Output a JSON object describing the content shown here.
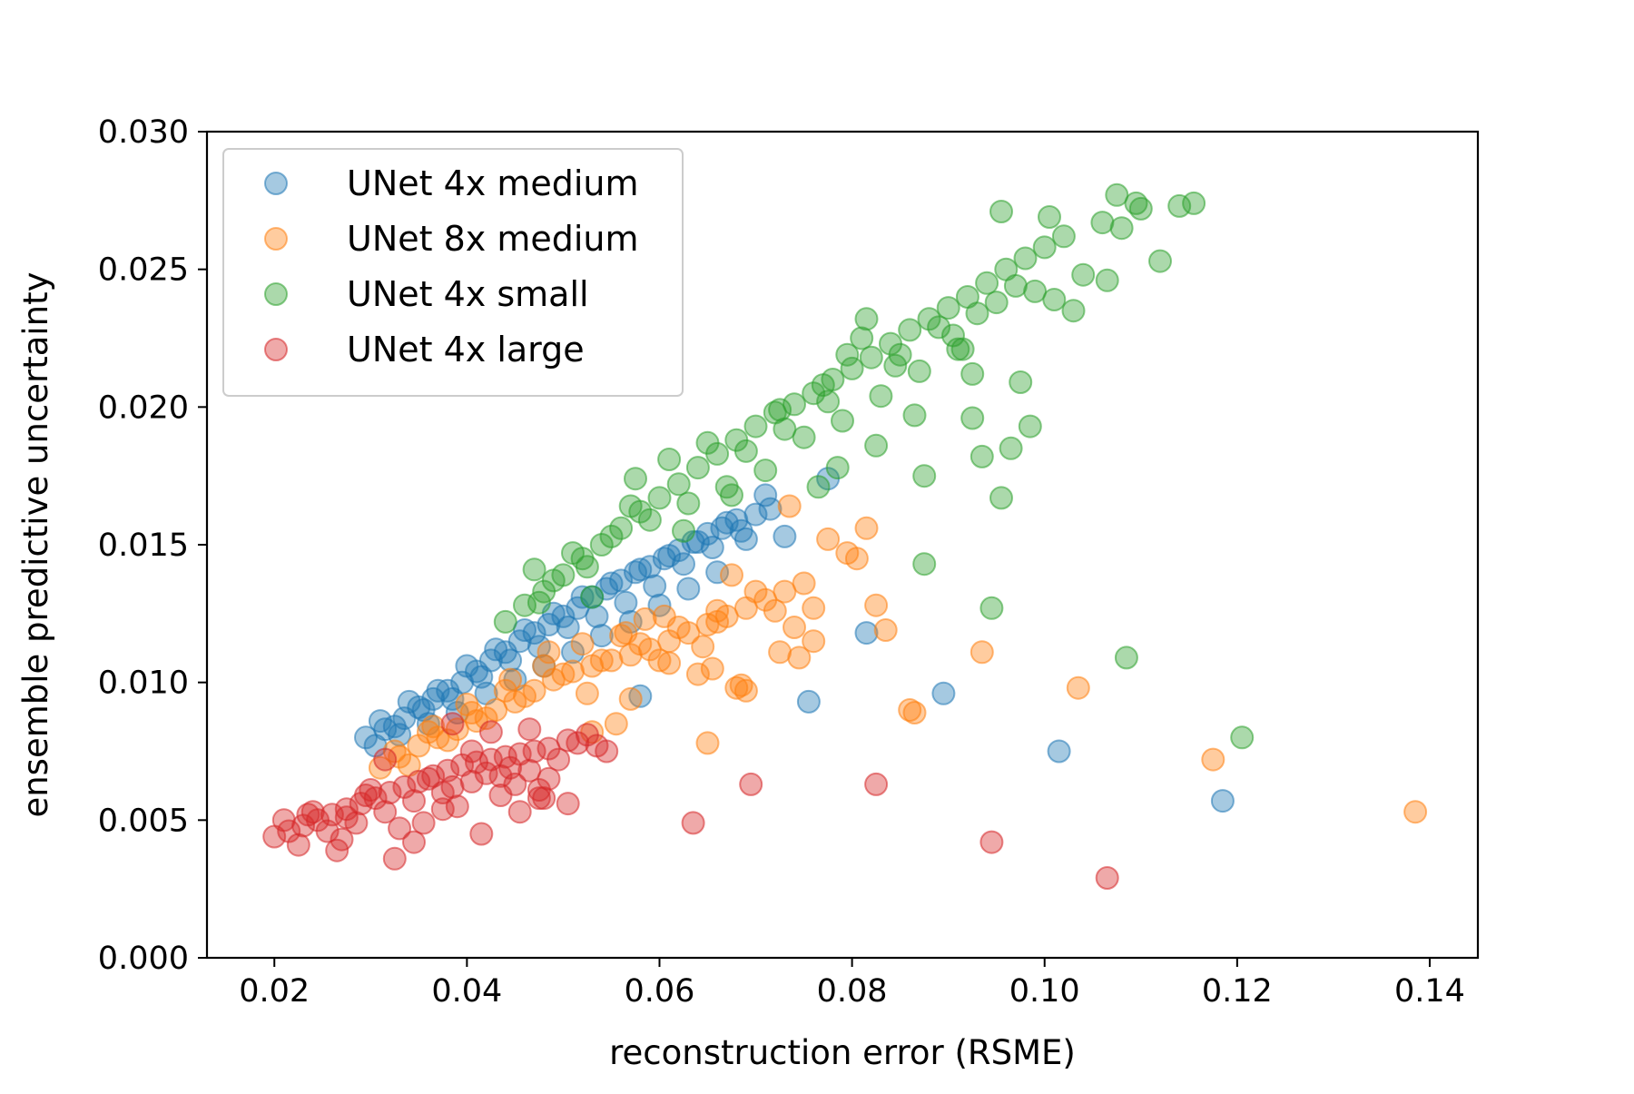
{
  "chart_data": {
    "type": "scatter",
    "title": "",
    "xlabel": "reconstruction error (RSME)",
    "ylabel": "ensemble predictive uncertainty",
    "xlim": [
      0.013,
      0.145
    ],
    "ylim": [
      0.0,
      0.03
    ],
    "xticks": [
      0.02,
      0.04,
      0.06,
      0.08,
      0.1,
      0.12,
      0.14
    ],
    "xtick_labels": [
      "0.02",
      "0.04",
      "0.06",
      "0.08",
      "0.10",
      "0.12",
      "0.14"
    ],
    "yticks": [
      0.0,
      0.005,
      0.01,
      0.015,
      0.02,
      0.025,
      0.03
    ],
    "ytick_labels": [
      "0.000",
      "0.005",
      "0.010",
      "0.015",
      "0.020",
      "0.025",
      "0.030"
    ],
    "grid": false,
    "legend_position": "top-left",
    "marker_alpha": 0.4,
    "series": [
      {
        "name": "UNet 4x medium",
        "color": "#1f77b4",
        "x": [
          0.0295,
          0.0315,
          0.0335,
          0.035,
          0.0365,
          0.038,
          0.0395,
          0.041,
          0.0425,
          0.044,
          0.0455,
          0.047,
          0.0485,
          0.05,
          0.0515,
          0.053,
          0.0545,
          0.056,
          0.0575,
          0.059,
          0.0605,
          0.062,
          0.0635,
          0.065,
          0.0665,
          0.068,
          0.0305,
          0.033,
          0.036,
          0.039,
          0.042,
          0.045,
          0.048,
          0.051,
          0.054,
          0.057,
          0.06,
          0.063,
          0.066,
          0.031,
          0.034,
          0.037,
          0.04,
          0.043,
          0.046,
          0.049,
          0.052,
          0.055,
          0.058,
          0.061,
          0.064,
          0.067,
          0.0325,
          0.0355,
          0.0385,
          0.0415,
          0.0445,
          0.0475,
          0.0505,
          0.0535,
          0.0565,
          0.0595,
          0.0625,
          0.0655,
          0.0685,
          0.07,
          0.0715,
          0.073,
          0.0775,
          0.0815,
          0.0755,
          0.0895,
          0.1015,
          0.1185,
          0.058,
          0.069,
          0.071
        ],
        "y": [
          0.008,
          0.0083,
          0.0087,
          0.0091,
          0.0094,
          0.0097,
          0.01,
          0.0104,
          0.0108,
          0.0111,
          0.0115,
          0.0118,
          0.0121,
          0.0124,
          0.0127,
          0.0131,
          0.0134,
          0.0137,
          0.014,
          0.0142,
          0.0145,
          0.0148,
          0.0151,
          0.0154,
          0.0156,
          0.0159,
          0.0077,
          0.0081,
          0.0085,
          0.0089,
          0.0096,
          0.0101,
          0.0106,
          0.0111,
          0.0117,
          0.0122,
          0.0128,
          0.0134,
          0.014,
          0.0086,
          0.0093,
          0.0097,
          0.0106,
          0.0112,
          0.0119,
          0.0125,
          0.0131,
          0.0136,
          0.0141,
          0.0146,
          0.0151,
          0.0158,
          0.0084,
          0.009,
          0.0094,
          0.0102,
          0.0108,
          0.0113,
          0.012,
          0.0124,
          0.0129,
          0.0135,
          0.0143,
          0.0149,
          0.0155,
          0.0161,
          0.0163,
          0.0153,
          0.0174,
          0.0118,
          0.0093,
          0.0096,
          0.0075,
          0.0057,
          0.0095,
          0.0152,
          0.0168
        ]
      },
      {
        "name": "UNet 8x medium",
        "color": "#ff7f0e",
        "x": [
          0.031,
          0.033,
          0.035,
          0.037,
          0.039,
          0.041,
          0.043,
          0.045,
          0.047,
          0.049,
          0.051,
          0.053,
          0.055,
          0.057,
          0.059,
          0.061,
          0.063,
          0.065,
          0.067,
          0.069,
          0.071,
          0.073,
          0.075,
          0.034,
          0.038,
          0.042,
          0.046,
          0.05,
          0.054,
          0.058,
          0.062,
          0.066,
          0.07,
          0.074,
          0.036,
          0.04,
          0.044,
          0.048,
          0.052,
          0.056,
          0.06,
          0.064,
          0.068,
          0.072,
          0.076,
          0.0325,
          0.0365,
          0.0405,
          0.0445,
          0.0485,
          0.0525,
          0.0565,
          0.0605,
          0.0645,
          0.0685,
          0.0725,
          0.053,
          0.057,
          0.061,
          0.066,
          0.0735,
          0.0775,
          0.0795,
          0.0805,
          0.0815,
          0.0825,
          0.0835,
          0.0745,
          0.076,
          0.069,
          0.065,
          0.0675,
          0.0585,
          0.0555,
          0.0655,
          0.086,
          0.0935,
          0.1035,
          0.1175,
          0.1385,
          0.0865
        ],
        "y": [
          0.0069,
          0.0073,
          0.0077,
          0.008,
          0.0083,
          0.0086,
          0.009,
          0.0093,
          0.0097,
          0.0101,
          0.0104,
          0.0106,
          0.0108,
          0.011,
          0.0112,
          0.0115,
          0.0118,
          0.0121,
          0.0124,
          0.0127,
          0.013,
          0.0133,
          0.0136,
          0.007,
          0.0079,
          0.0087,
          0.0095,
          0.0103,
          0.0108,
          0.0114,
          0.012,
          0.0126,
          0.0133,
          0.012,
          0.0082,
          0.0092,
          0.0097,
          0.0106,
          0.0114,
          0.0117,
          0.0108,
          0.0103,
          0.0098,
          0.0126,
          0.0115,
          0.0075,
          0.0084,
          0.0089,
          0.0101,
          0.0111,
          0.0096,
          0.0118,
          0.0124,
          0.0113,
          0.0099,
          0.0111,
          0.0082,
          0.0094,
          0.0107,
          0.0122,
          0.0164,
          0.0152,
          0.0147,
          0.0145,
          0.0156,
          0.0128,
          0.0119,
          0.0109,
          0.0127,
          0.0097,
          0.0078,
          0.0139,
          0.0123,
          0.0085,
          0.0105,
          0.009,
          0.0111,
          0.0098,
          0.0072,
          0.0053,
          0.0089
        ]
      },
      {
        "name": "UNet 4x small",
        "color": "#2ca02c",
        "x": [
          0.044,
          0.046,
          0.048,
          0.05,
          0.052,
          0.054,
          0.056,
          0.058,
          0.06,
          0.062,
          0.064,
          0.066,
          0.068,
          0.07,
          0.072,
          0.074,
          0.076,
          0.078,
          0.08,
          0.082,
          0.084,
          0.086,
          0.088,
          0.09,
          0.092,
          0.094,
          0.096,
          0.098,
          0.1,
          0.102,
          0.104,
          0.106,
          0.108,
          0.11,
          0.112,
          0.114,
          0.047,
          0.051,
          0.055,
          0.059,
          0.063,
          0.067,
          0.071,
          0.075,
          0.079,
          0.083,
          0.087,
          0.091,
          0.095,
          0.099,
          0.103,
          0.049,
          0.053,
          0.057,
          0.061,
          0.065,
          0.069,
          0.073,
          0.077,
          0.081,
          0.085,
          0.089,
          0.093,
          0.097,
          0.101,
          0.0475,
          0.0525,
          0.0575,
          0.0625,
          0.0675,
          0.0725,
          0.0775,
          0.0825,
          0.0875,
          0.0925,
          0.0975,
          0.1075,
          0.1095,
          0.1155,
          0.1065,
          0.0955,
          0.1005,
          0.0955,
          0.0935,
          0.0875,
          0.0965,
          0.0945,
          0.1085,
          0.1205,
          0.0865,
          0.0905,
          0.0915,
          0.0795,
          0.0815,
          0.0845,
          0.0925,
          0.0985,
          0.0765,
          0.0785
        ],
        "y": [
          0.0122,
          0.0128,
          0.0133,
          0.0139,
          0.0145,
          0.015,
          0.0156,
          0.0162,
          0.0167,
          0.0172,
          0.0178,
          0.0183,
          0.0188,
          0.0193,
          0.0198,
          0.0201,
          0.0205,
          0.021,
          0.0214,
          0.0218,
          0.0223,
          0.0228,
          0.0232,
          0.0236,
          0.024,
          0.0245,
          0.025,
          0.0254,
          0.0258,
          0.0262,
          0.0248,
          0.0267,
          0.0265,
          0.0272,
          0.0253,
          0.0273,
          0.0141,
          0.0147,
          0.0153,
          0.0159,
          0.0165,
          0.0171,
          0.0177,
          0.0189,
          0.0195,
          0.0204,
          0.0213,
          0.0221,
          0.0238,
          0.0242,
          0.0235,
          0.0137,
          0.0131,
          0.0164,
          0.0181,
          0.0187,
          0.0184,
          0.0192,
          0.0208,
          0.0225,
          0.0219,
          0.0229,
          0.0234,
          0.0244,
          0.0239,
          0.0129,
          0.0142,
          0.0174,
          0.0155,
          0.0168,
          0.0199,
          0.0202,
          0.0186,
          0.0175,
          0.0196,
          0.0209,
          0.0277,
          0.0274,
          0.0274,
          0.0246,
          0.0271,
          0.0269,
          0.0167,
          0.0182,
          0.0143,
          0.0185,
          0.0127,
          0.0109,
          0.008,
          0.0197,
          0.0226,
          0.0221,
          0.0219,
          0.0232,
          0.0215,
          0.0212,
          0.0193,
          0.0171,
          0.0178
        ]
      },
      {
        "name": "UNet 4x large",
        "color": "#d62728",
        "x": [
          0.02,
          0.0215,
          0.023,
          0.0245,
          0.026,
          0.0275,
          0.029,
          0.0305,
          0.032,
          0.0335,
          0.035,
          0.0365,
          0.038,
          0.0395,
          0.041,
          0.0425,
          0.044,
          0.0455,
          0.047,
          0.0485,
          0.0225,
          0.0255,
          0.0285,
          0.0315,
          0.0345,
          0.0375,
          0.0405,
          0.0435,
          0.0465,
          0.0495,
          0.021,
          0.024,
          0.027,
          0.03,
          0.033,
          0.036,
          0.039,
          0.042,
          0.045,
          0.048,
          0.0235,
          0.0265,
          0.0295,
          0.0325,
          0.0355,
          0.0385,
          0.0415,
          0.0445,
          0.0475,
          0.0505,
          0.0315,
          0.0345,
          0.0375,
          0.0405,
          0.0435,
          0.0465,
          0.0485,
          0.0505,
          0.0525,
          0.0535,
          0.0455,
          0.0475,
          0.0515,
          0.0545,
          0.0635,
          0.0695,
          0.0825,
          0.0945,
          0.1065,
          0.0385,
          0.0425,
          0.0275
        ],
        "y": [
          0.0044,
          0.0046,
          0.0048,
          0.005,
          0.0052,
          0.0054,
          0.0056,
          0.0058,
          0.006,
          0.0062,
          0.0064,
          0.0066,
          0.0068,
          0.007,
          0.0071,
          0.0072,
          0.0073,
          0.0074,
          0.0075,
          0.0076,
          0.0041,
          0.0046,
          0.0049,
          0.0053,
          0.0057,
          0.006,
          0.0064,
          0.0066,
          0.0068,
          0.0072,
          0.005,
          0.0053,
          0.0043,
          0.0061,
          0.0047,
          0.0065,
          0.0055,
          0.0067,
          0.0063,
          0.0058,
          0.0052,
          0.0039,
          0.0059,
          0.0036,
          0.0049,
          0.0062,
          0.0045,
          0.0069,
          0.0061,
          0.0079,
          0.0072,
          0.0042,
          0.0054,
          0.0075,
          0.0059,
          0.0083,
          0.0065,
          0.0056,
          0.0081,
          0.0077,
          0.0053,
          0.0058,
          0.0078,
          0.0075,
          0.0049,
          0.0063,
          0.0063,
          0.0042,
          0.0029,
          0.0085,
          0.0082,
          0.0051
        ]
      }
    ]
  }
}
